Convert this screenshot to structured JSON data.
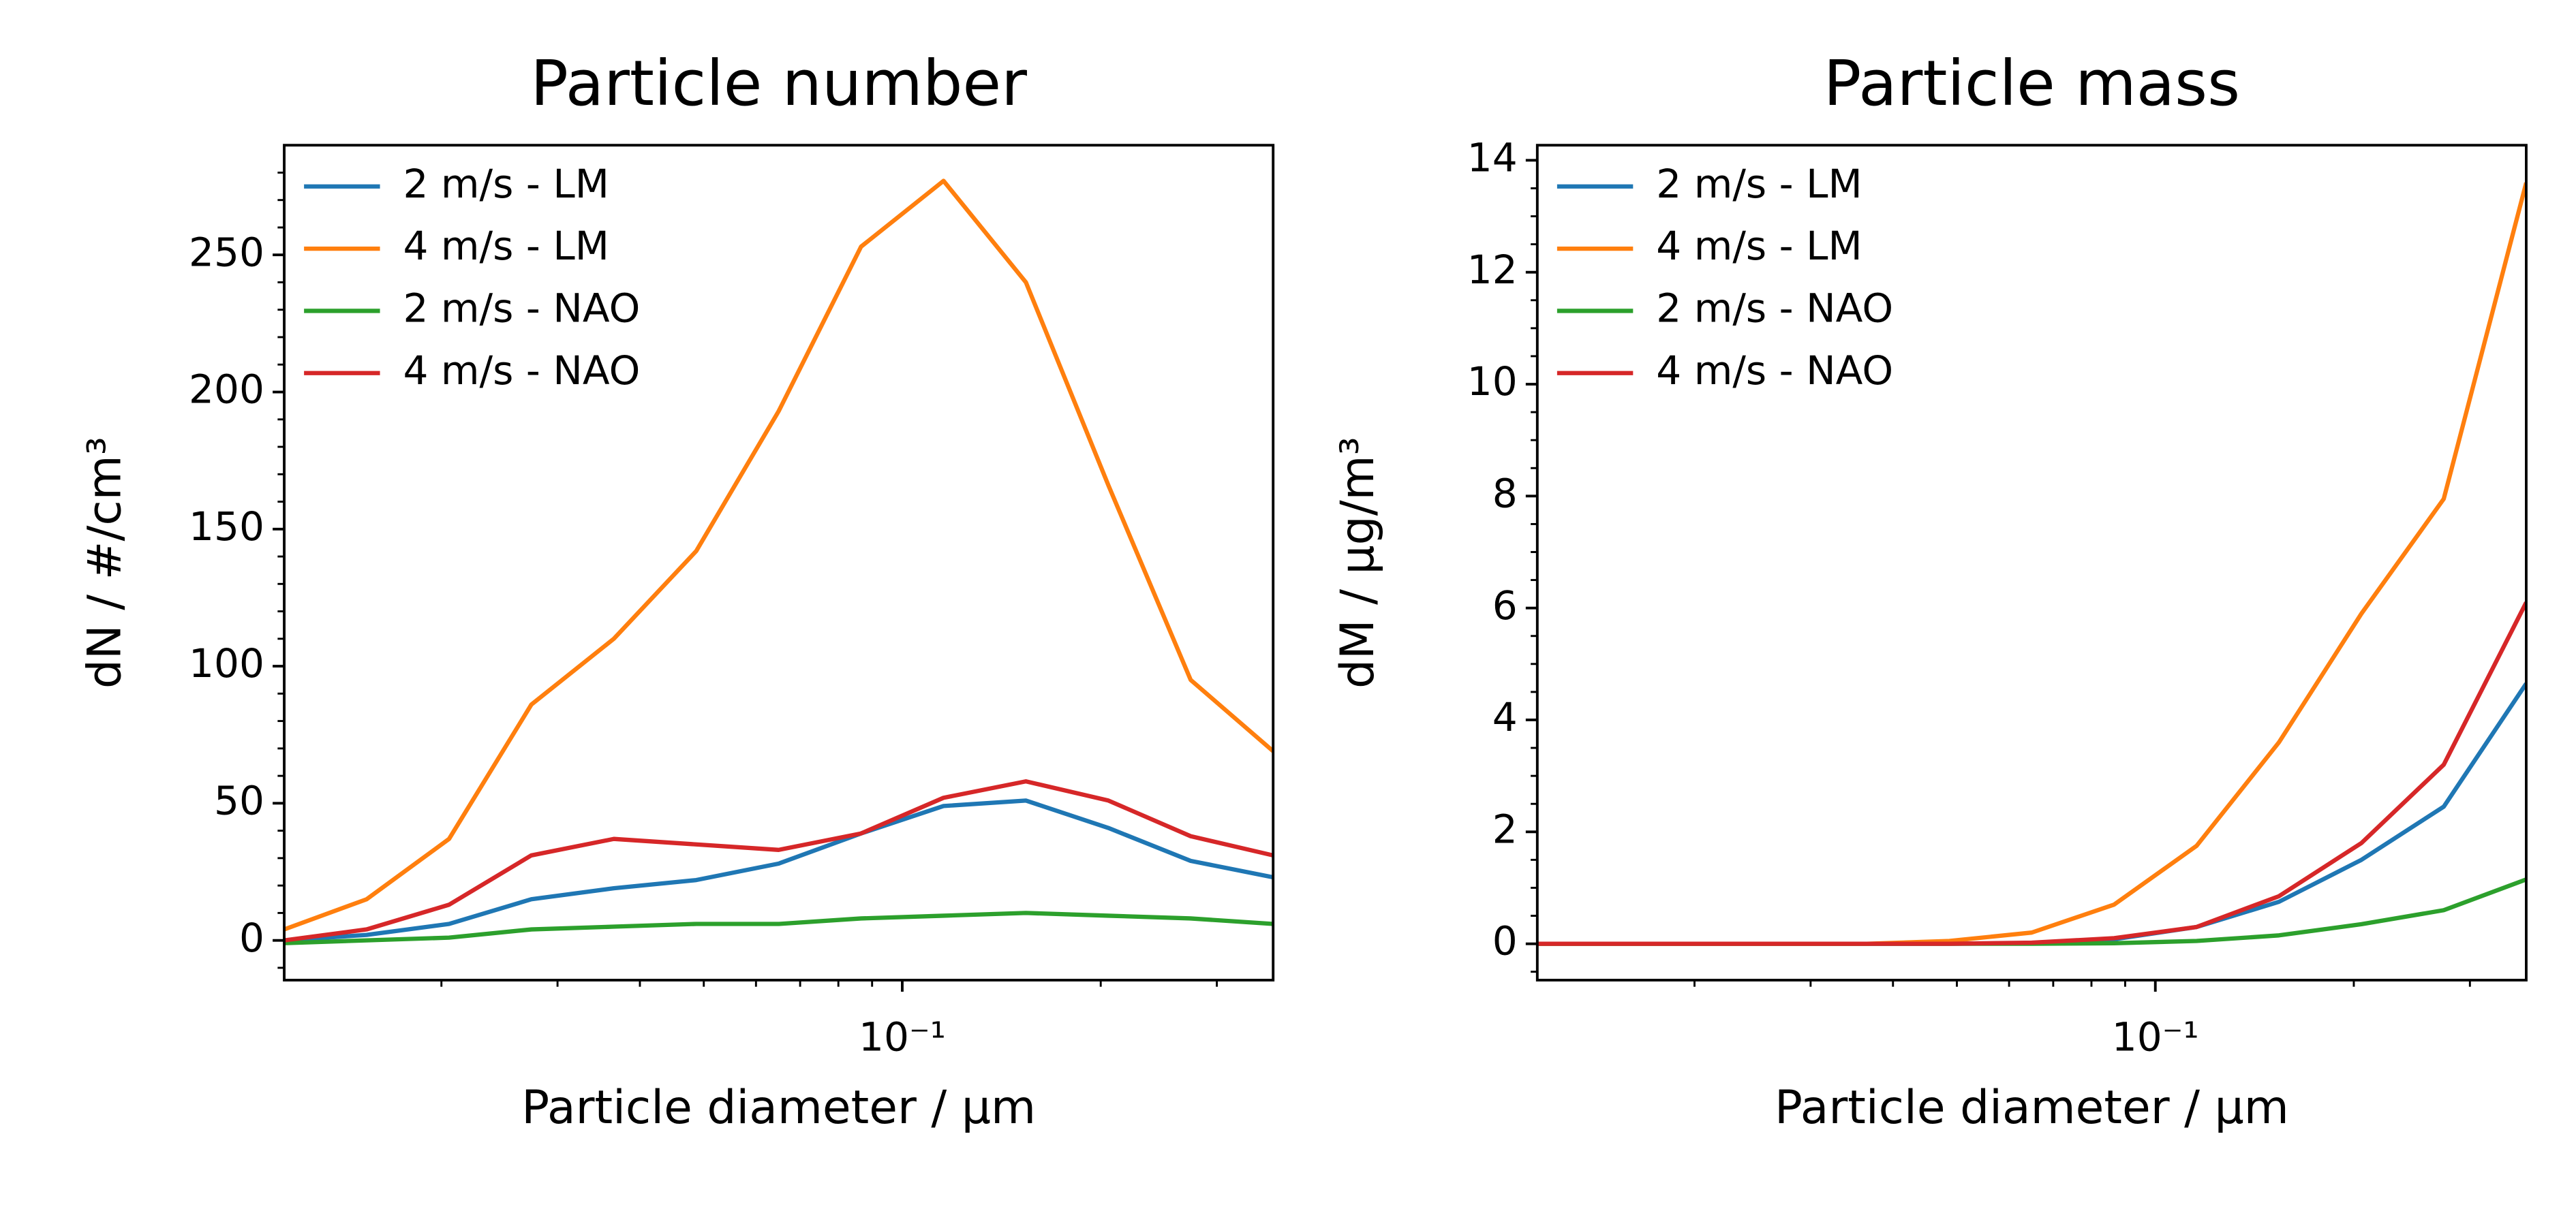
{
  "chart_data": [
    {
      "type": "line",
      "title": "Particle number",
      "xlabel": "Particle diameter / μm",
      "ylabel": "dN / #/cm³",
      "xscale": "log",
      "legend": "upper left",
      "x": [
        0.01155,
        0.0154,
        0.02054,
        0.02738,
        0.03652,
        0.0487,
        0.06494,
        0.0866,
        0.1155,
        0.154,
        0.2054,
        0.2738,
        0.3652
      ],
      "xlim": [
        0.01155,
        0.3652
      ],
      "xticks": [
        {
          "value": 0.1,
          "label": "10⁻¹"
        }
      ],
      "xminorticks": [
        0.02,
        0.03,
        0.04,
        0.05,
        0.06,
        0.07,
        0.08,
        0.09,
        0.2,
        0.3
      ],
      "ylim": [
        -14.5,
        290
      ],
      "yticks": [
        0,
        50,
        100,
        150,
        200,
        250
      ],
      "yminorticks": [
        -10,
        10,
        20,
        30,
        40,
        60,
        70,
        80,
        90,
        110,
        120,
        130,
        140,
        160,
        170,
        180,
        190,
        210,
        220,
        230,
        240,
        260,
        270,
        280
      ],
      "series": [
        {
          "name": "2 m/s - LM",
          "color": "#1f77b4",
          "values": [
            0,
            2,
            6,
            15,
            19,
            22,
            28,
            39,
            49,
            51,
            41,
            29,
            23
          ]
        },
        {
          "name": "4 m/s - LM",
          "color": "#ff7f0e",
          "values": [
            4,
            15,
            37,
            86,
            110,
            142,
            193,
            253,
            277,
            240,
            166,
            95,
            69
          ]
        },
        {
          "name": "2 m/s - NAO",
          "color": "#2ca02c",
          "values": [
            -1,
            0,
            1,
            4,
            5,
            6,
            6,
            8,
            9,
            10,
            9,
            8,
            6
          ]
        },
        {
          "name": "4 m/s - NAO",
          "color": "#d62728",
          "values": [
            0,
            4,
            13,
            31,
            37,
            35,
            33,
            39,
            52,
            58,
            51,
            38,
            31
          ]
        }
      ]
    },
    {
      "type": "line",
      "title": "Particle mass",
      "xlabel": "Particle diameter / μm",
      "ylabel": "dM / μg/m³",
      "xscale": "log",
      "legend": "upper left",
      "x": [
        0.01155,
        0.0154,
        0.02054,
        0.02738,
        0.03652,
        0.0487,
        0.06494,
        0.0866,
        0.1155,
        0.154,
        0.2054,
        0.2738,
        0.3652
      ],
      "xlim": [
        0.01155,
        0.3652
      ],
      "xticks": [
        {
          "value": 0.1,
          "label": "10⁻¹"
        }
      ],
      "xminorticks": [
        0.02,
        0.03,
        0.04,
        0.05,
        0.06,
        0.07,
        0.08,
        0.09,
        0.2,
        0.3
      ],
      "ylim": [
        -0.65,
        14.27
      ],
      "yticks": [
        0,
        2,
        4,
        6,
        8,
        10,
        12,
        14
      ],
      "yminorticks": [
        -0.5,
        0.5,
        1,
        1.5,
        2.5,
        3,
        3.5,
        4.5,
        5,
        5.5,
        6.5,
        7,
        7.5,
        8.5,
        9,
        9.5,
        10.5,
        11,
        11.5,
        12.5,
        13,
        13.5
      ],
      "series": [
        {
          "name": "2 m/s - LM",
          "color": "#1f77b4",
          "values": [
            0,
            0,
            0,
            0,
            0,
            0,
            0.01,
            0.08,
            0.3,
            0.75,
            1.5,
            2.45,
            4.65
          ]
        },
        {
          "name": "4 m/s - LM",
          "color": "#ff7f0e",
          "values": [
            0,
            0,
            0,
            0,
            0,
            0.05,
            0.2,
            0.7,
            1.75,
            3.6,
            5.9,
            7.95,
            13.6
          ]
        },
        {
          "name": "2 m/s - NAO",
          "color": "#2ca02c",
          "values": [
            0,
            0,
            0,
            0,
            0,
            0,
            0,
            0.01,
            0.05,
            0.15,
            0.35,
            0.6,
            1.15
          ]
        },
        {
          "name": "4 m/s - NAO",
          "color": "#d62728",
          "values": [
            0,
            0,
            0,
            0,
            0,
            0,
            0.02,
            0.1,
            0.3,
            0.85,
            1.8,
            3.2,
            6.1
          ]
        }
      ]
    }
  ]
}
